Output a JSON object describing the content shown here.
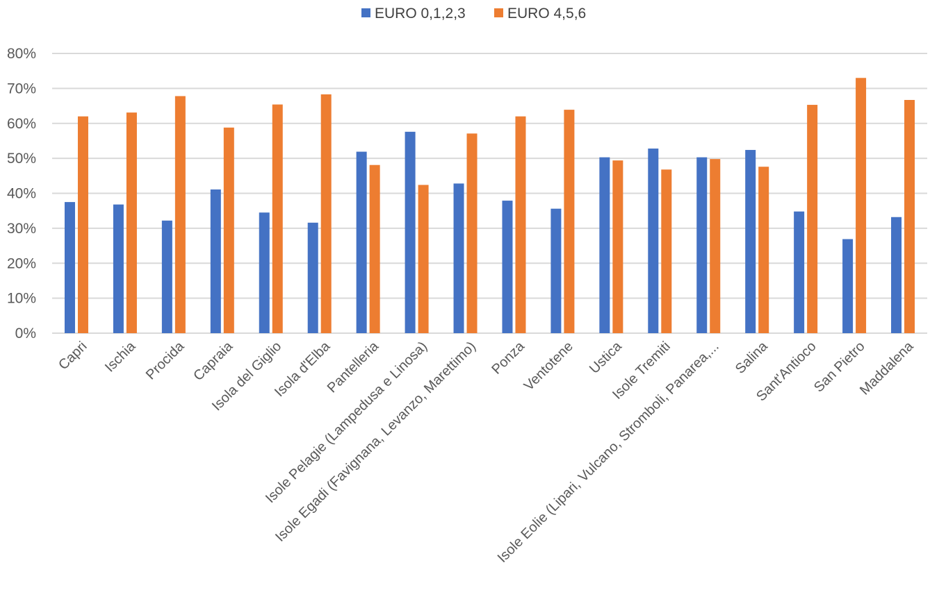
{
  "chart_data": {
    "type": "bar",
    "title": "",
    "xlabel": "",
    "ylabel": "",
    "ylim": [
      0,
      80
    ],
    "y_ticks": [
      0,
      10,
      20,
      30,
      40,
      50,
      60,
      70,
      80
    ],
    "y_tick_labels": [
      "0%",
      "10%",
      "20%",
      "30%",
      "40%",
      "50%",
      "60%",
      "70%",
      "80%"
    ],
    "grid": true,
    "legend_position": "top-center",
    "categories": [
      "Capri",
      "Ischia",
      "Procida",
      "Capraia",
      "Isola del Giglio",
      "Isola d'Elba",
      "Pantelleria",
      "Isole Pelagie (Lampedusa e Linosa)",
      "Isole Egadi (Favignana, Levanzo, Marettimo)",
      "Ponza",
      "Ventotene",
      "Ustica",
      "Isole Tremiti",
      "Isole Eolie (Lipari, Vulcano, Stromboli, Panarea,...",
      "Salina",
      "Sant'Antioco",
      "San Pietro",
      "Maddalena"
    ],
    "series": [
      {
        "name": "EURO 0,1,2,3",
        "color": "#4472c4",
        "values": [
          37.5,
          36.8,
          32.2,
          41.1,
          34.5,
          31.6,
          51.9,
          57.6,
          42.8,
          37.9,
          35.6,
          50.3,
          52.8,
          50.3,
          52.4,
          34.8,
          26.9,
          33.2
        ]
      },
      {
        "name": "EURO 4,5,6",
        "color": "#ed7d31",
        "values": [
          62.0,
          63.1,
          67.8,
          58.8,
          65.4,
          68.3,
          48.1,
          42.4,
          57.1,
          62.0,
          63.9,
          49.4,
          46.8,
          49.8,
          47.6,
          65.3,
          73.0,
          66.7
        ]
      }
    ]
  }
}
